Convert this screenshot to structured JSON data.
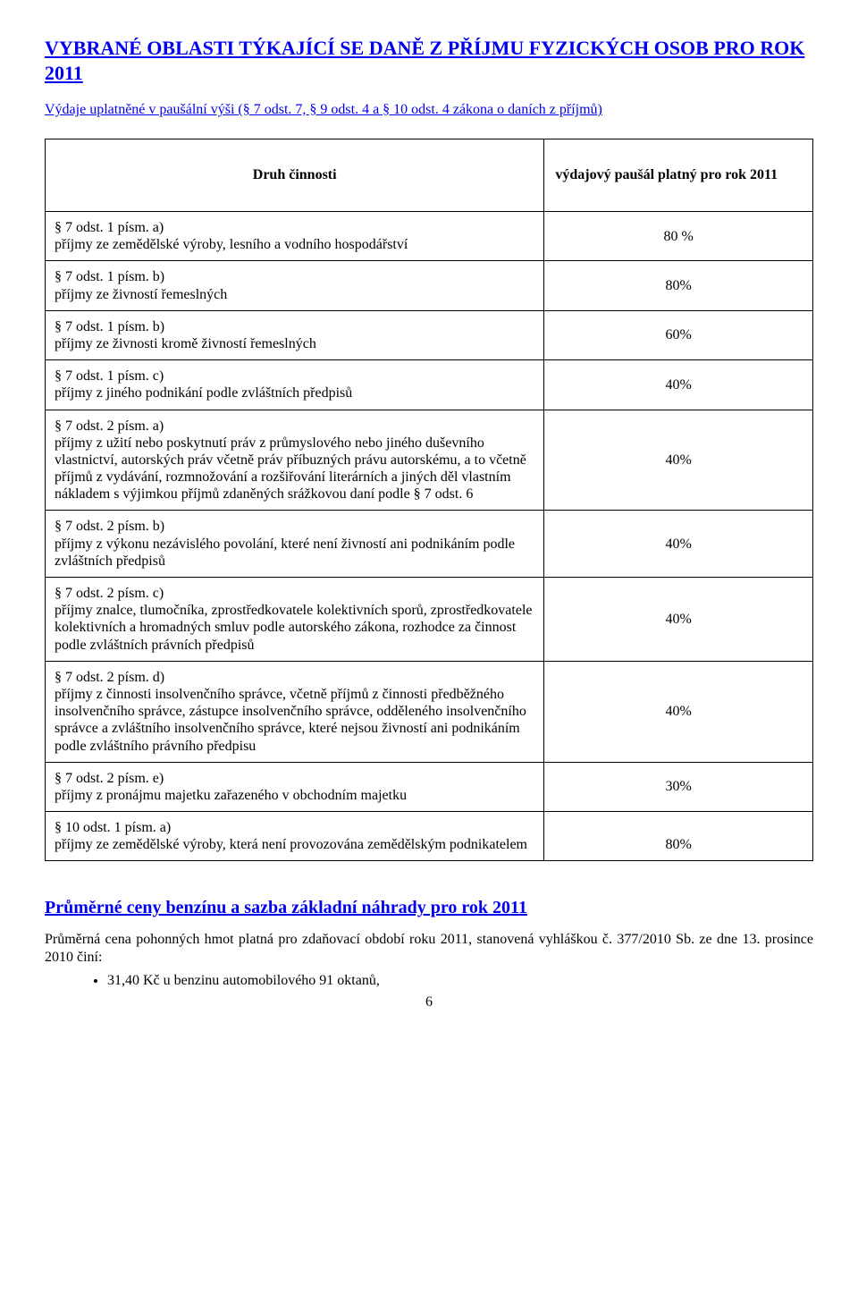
{
  "heading_main": "VYBRANÉ OBLASTI TÝKAJÍCÍ SE DANĚ Z PŘÍJMU FYZICKÝCH OSOB PRO ROK 2011",
  "heading_sub": "Výdaje uplatněné v paušální výši (§ 7 odst. 7, § 9 odst. 4 a § 10 odst. 4 zákona o daních z příjmů)",
  "table_header_left": "Druh činnosti",
  "table_header_right": "výdajový paušál platný pro rok 2011",
  "rows": [
    {
      "h": "§ 7 odst. 1 písm. a)",
      "b": "příjmy ze zemědělské výroby, lesního a vodního hospodářství",
      "v": "80 %"
    },
    {
      "h": "§ 7 odst. 1 písm. b)",
      "b": "příjmy ze živností řemeslných",
      "v": "80%"
    },
    {
      "h": "§ 7 odst. 1 písm. b)",
      "b": "příjmy ze živnosti kromě živností řemeslných",
      "v": "60%"
    },
    {
      "h": "§ 7 odst. 1 písm. c)",
      "b": "příjmy z jiného podnikání podle zvláštních předpisů",
      "v": "40%"
    },
    {
      "h": "§ 7 odst. 2 písm. a)",
      "b": "příjmy z užití nebo poskytnutí práv z průmyslového nebo jiného duševního vlastnictví, autorských práv včetně práv příbuzných právu autorskému, a to včetně příjmů z vydávání, rozmnožování a rozšiřování literárních a jiných děl vlastním nákladem s výjimkou příjmů zdaněných srážkovou daní podle § 7 odst. 6",
      "v": "40%"
    },
    {
      "h": "§ 7 odst. 2 písm. b)",
      "b": "příjmy z výkonu nezávislého povolání, které není živností ani podnikáním podle zvláštních předpisů",
      "v": "40%"
    },
    {
      "h": "§ 7 odst. 2 písm. c)",
      "b": "příjmy znalce, tlumočníka, zprostředkovatele kolektivních sporů, zprostředkovatele kolektivních a hromadných smluv podle autorského zákona, rozhodce za činnost podle zvláštních právních předpisů",
      "v": "40%"
    },
    {
      "h": "§ 7 odst. 2 písm. d)",
      "b": "příjmy z činnosti insolvenčního správce, včetně příjmů z činnosti předběžného insolvenčního správce, zástupce insolvenčního správce, odděleného insolvenčního správce a zvláštního insolvenčního správce, které nejsou živností ani podnikáním podle zvláštního právního předpisu",
      "v": "40%"
    },
    {
      "h": "§ 7 odst. 2 písm. e)",
      "b": "příjmy z pronájmu majetku zařazeného v obchodním majetku",
      "v": "30%"
    },
    {
      "h": "§ 10 odst. 1 písm. a)",
      "b": "příjmy ze zemědělské výroby, která není provozována zemědělským podnikatelem",
      "v": "80%"
    }
  ],
  "section2_heading": "Průměrné ceny benzínu a sazba základní náhrady pro rok 2011",
  "section2_para": "Průměrná  cena pohonných hmot platná pro zdaňovací období roku 2011, stanovená vyhláškou č. 377/2010 Sb. ze dne 13. prosince 2010 činí:",
  "section2_bullet1": "31,40 Kč u benzinu automobilového 91 oktanů,",
  "page_number": "6"
}
